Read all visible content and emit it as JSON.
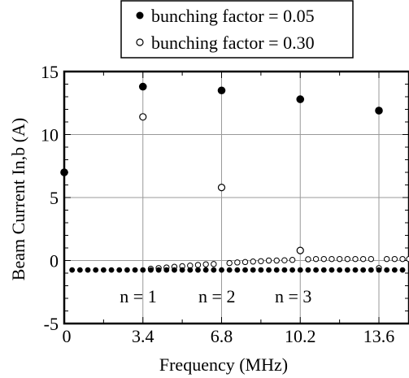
{
  "chart_data": {
    "type": "scatter",
    "xlabel": "Frequency (MHz)",
    "ylabel": "Beam Current  In,b (A)",
    "xlim": [
      0,
      14.9
    ],
    "ylim": [
      -5,
      15
    ],
    "xticks": [
      0,
      3.4,
      6.8,
      10.2,
      13.6
    ],
    "xtick_labels": [
      "0",
      "3.4",
      "6.8",
      "10.2",
      "13.6"
    ],
    "yticks": [
      -5,
      0,
      5,
      10,
      15
    ],
    "ytick_labels": [
      "-5",
      "0",
      "5",
      "10",
      "15"
    ],
    "grid": true,
    "legend_position": "top (above plot)",
    "annotations": [
      {
        "text": "n = 1",
        "x": 2.4,
        "y": -2.8
      },
      {
        "text": "n = 2",
        "x": 5.8,
        "y": -2.8
      },
      {
        "text": "n = 3",
        "x": 9.1,
        "y": -2.8
      }
    ],
    "series": [
      {
        "name": "bunching factor = 0.05",
        "marker": "filled-circle",
        "color": "#000000",
        "peaks": [
          {
            "x": 0,
            "y": 7.0
          },
          {
            "x": 3.4,
            "y": 13.8
          },
          {
            "x": 6.8,
            "y": 13.5
          },
          {
            "x": 10.2,
            "y": 12.8
          },
          {
            "x": 13.6,
            "y": 11.9
          }
        ],
        "baseline": {
          "x_start": 0.34,
          "x_end": 14.9,
          "x_step": 0.34,
          "y": -0.75
        }
      },
      {
        "name": "bunching factor = 0.30",
        "marker": "open-circle",
        "color": "#000000",
        "peaks": [
          {
            "x": 3.4,
            "y": 11.4
          },
          {
            "x": 6.8,
            "y": 5.8
          },
          {
            "x": 10.2,
            "y": 0.8
          }
        ],
        "baseline_points": [
          {
            "x": 3.74,
            "y": -0.65
          },
          {
            "x": 4.08,
            "y": -0.6
          },
          {
            "x": 4.42,
            "y": -0.55
          },
          {
            "x": 4.76,
            "y": -0.5
          },
          {
            "x": 5.1,
            "y": -0.45
          },
          {
            "x": 5.44,
            "y": -0.4
          },
          {
            "x": 5.78,
            "y": -0.35
          },
          {
            "x": 6.12,
            "y": -0.3
          },
          {
            "x": 6.46,
            "y": -0.28
          },
          {
            "x": 7.14,
            "y": -0.2
          },
          {
            "x": 7.48,
            "y": -0.15
          },
          {
            "x": 7.82,
            "y": -0.12
          },
          {
            "x": 8.16,
            "y": -0.08
          },
          {
            "x": 8.5,
            "y": -0.05
          },
          {
            "x": 8.84,
            "y": 0.0
          },
          {
            "x": 9.18,
            "y": 0.0
          },
          {
            "x": 9.52,
            "y": 0.02
          },
          {
            "x": 9.86,
            "y": 0.05
          },
          {
            "x": 10.54,
            "y": 0.1
          },
          {
            "x": 10.88,
            "y": 0.12
          },
          {
            "x": 11.22,
            "y": 0.12
          },
          {
            "x": 11.56,
            "y": 0.12
          },
          {
            "x": 11.9,
            "y": 0.12
          },
          {
            "x": 12.24,
            "y": 0.12
          },
          {
            "x": 12.58,
            "y": 0.12
          },
          {
            "x": 12.92,
            "y": 0.12
          },
          {
            "x": 13.26,
            "y": 0.12
          },
          {
            "x": 13.6,
            "y": -0.6
          },
          {
            "x": 13.94,
            "y": 0.12
          },
          {
            "x": 14.28,
            "y": 0.12
          },
          {
            "x": 14.62,
            "y": 0.12
          },
          {
            "x": 14.9,
            "y": 0.12
          }
        ]
      }
    ]
  }
}
